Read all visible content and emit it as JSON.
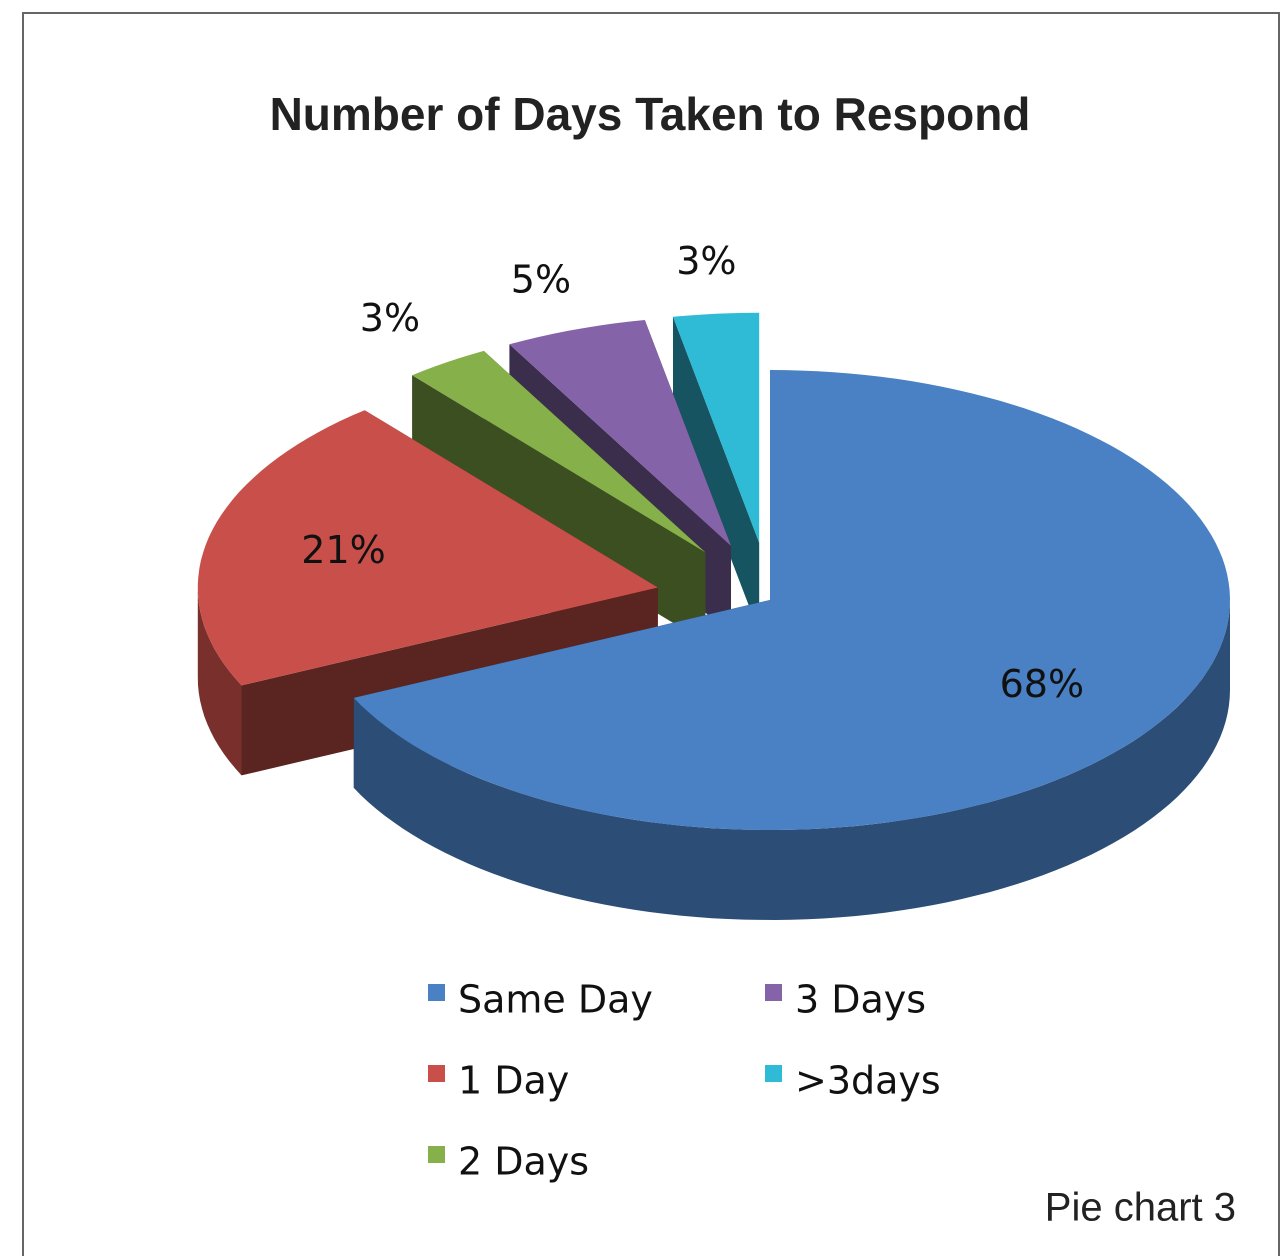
{
  "chart_data": {
    "type": "pie",
    "title": "Number of Days Taken to Respond",
    "caption": "Pie chart 3",
    "categories": [
      "Same Day",
      "1 Day",
      "2 Days",
      "3 Days",
      ">3days"
    ],
    "values": [
      68,
      21,
      3,
      5,
      3
    ],
    "value_labels": [
      "68%",
      "21%",
      "3%",
      "5%",
      "3%"
    ],
    "colors": [
      "#4a80c4",
      "#c9504a",
      "#86b04a",
      "#8463a8",
      "#2fbad6"
    ],
    "legend": "bottom"
  }
}
